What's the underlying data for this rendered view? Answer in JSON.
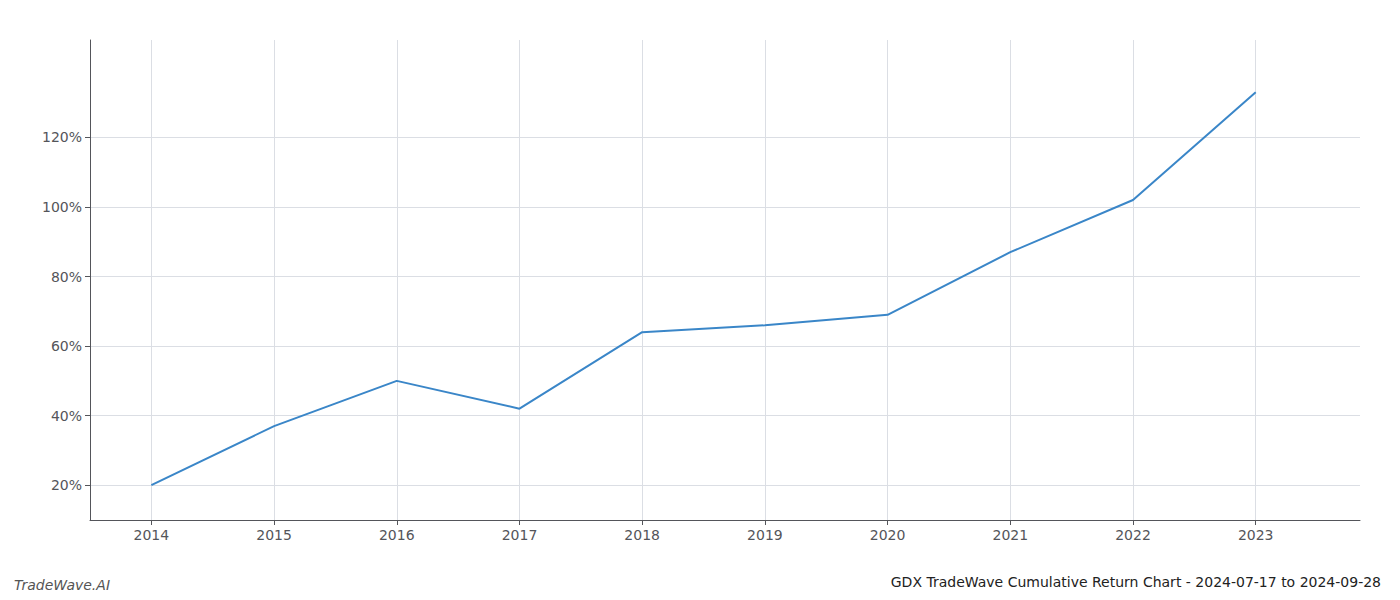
{
  "chart_data": {
    "type": "line",
    "title": "GDX TradeWave Cumulative Return Chart - 2024-07-17 to 2024-09-28",
    "annotations": [
      "TradeWave.AI"
    ],
    "x": [
      2014,
      2015,
      2016,
      2017,
      2018,
      2019,
      2020,
      2021,
      2022,
      2023
    ],
    "values": [
      20,
      37,
      50,
      42,
      64,
      66,
      69,
      87,
      102,
      133
    ],
    "color": "#3a86c8",
    "xlim": [
      2013.5,
      2023.85
    ],
    "ylim": [
      10,
      148
    ],
    "xticks": [
      2014,
      2015,
      2016,
      2017,
      2018,
      2019,
      2020,
      2021,
      2022,
      2023
    ],
    "yticks": [
      {
        "value": 20,
        "label": "20%"
      },
      {
        "value": 40,
        "label": "40%"
      },
      {
        "value": 60,
        "label": "60%"
      },
      {
        "value": 80,
        "label": "80%"
      },
      {
        "value": 100,
        "label": "100%"
      },
      {
        "value": 120,
        "label": "120%"
      }
    ],
    "grid": true
  }
}
